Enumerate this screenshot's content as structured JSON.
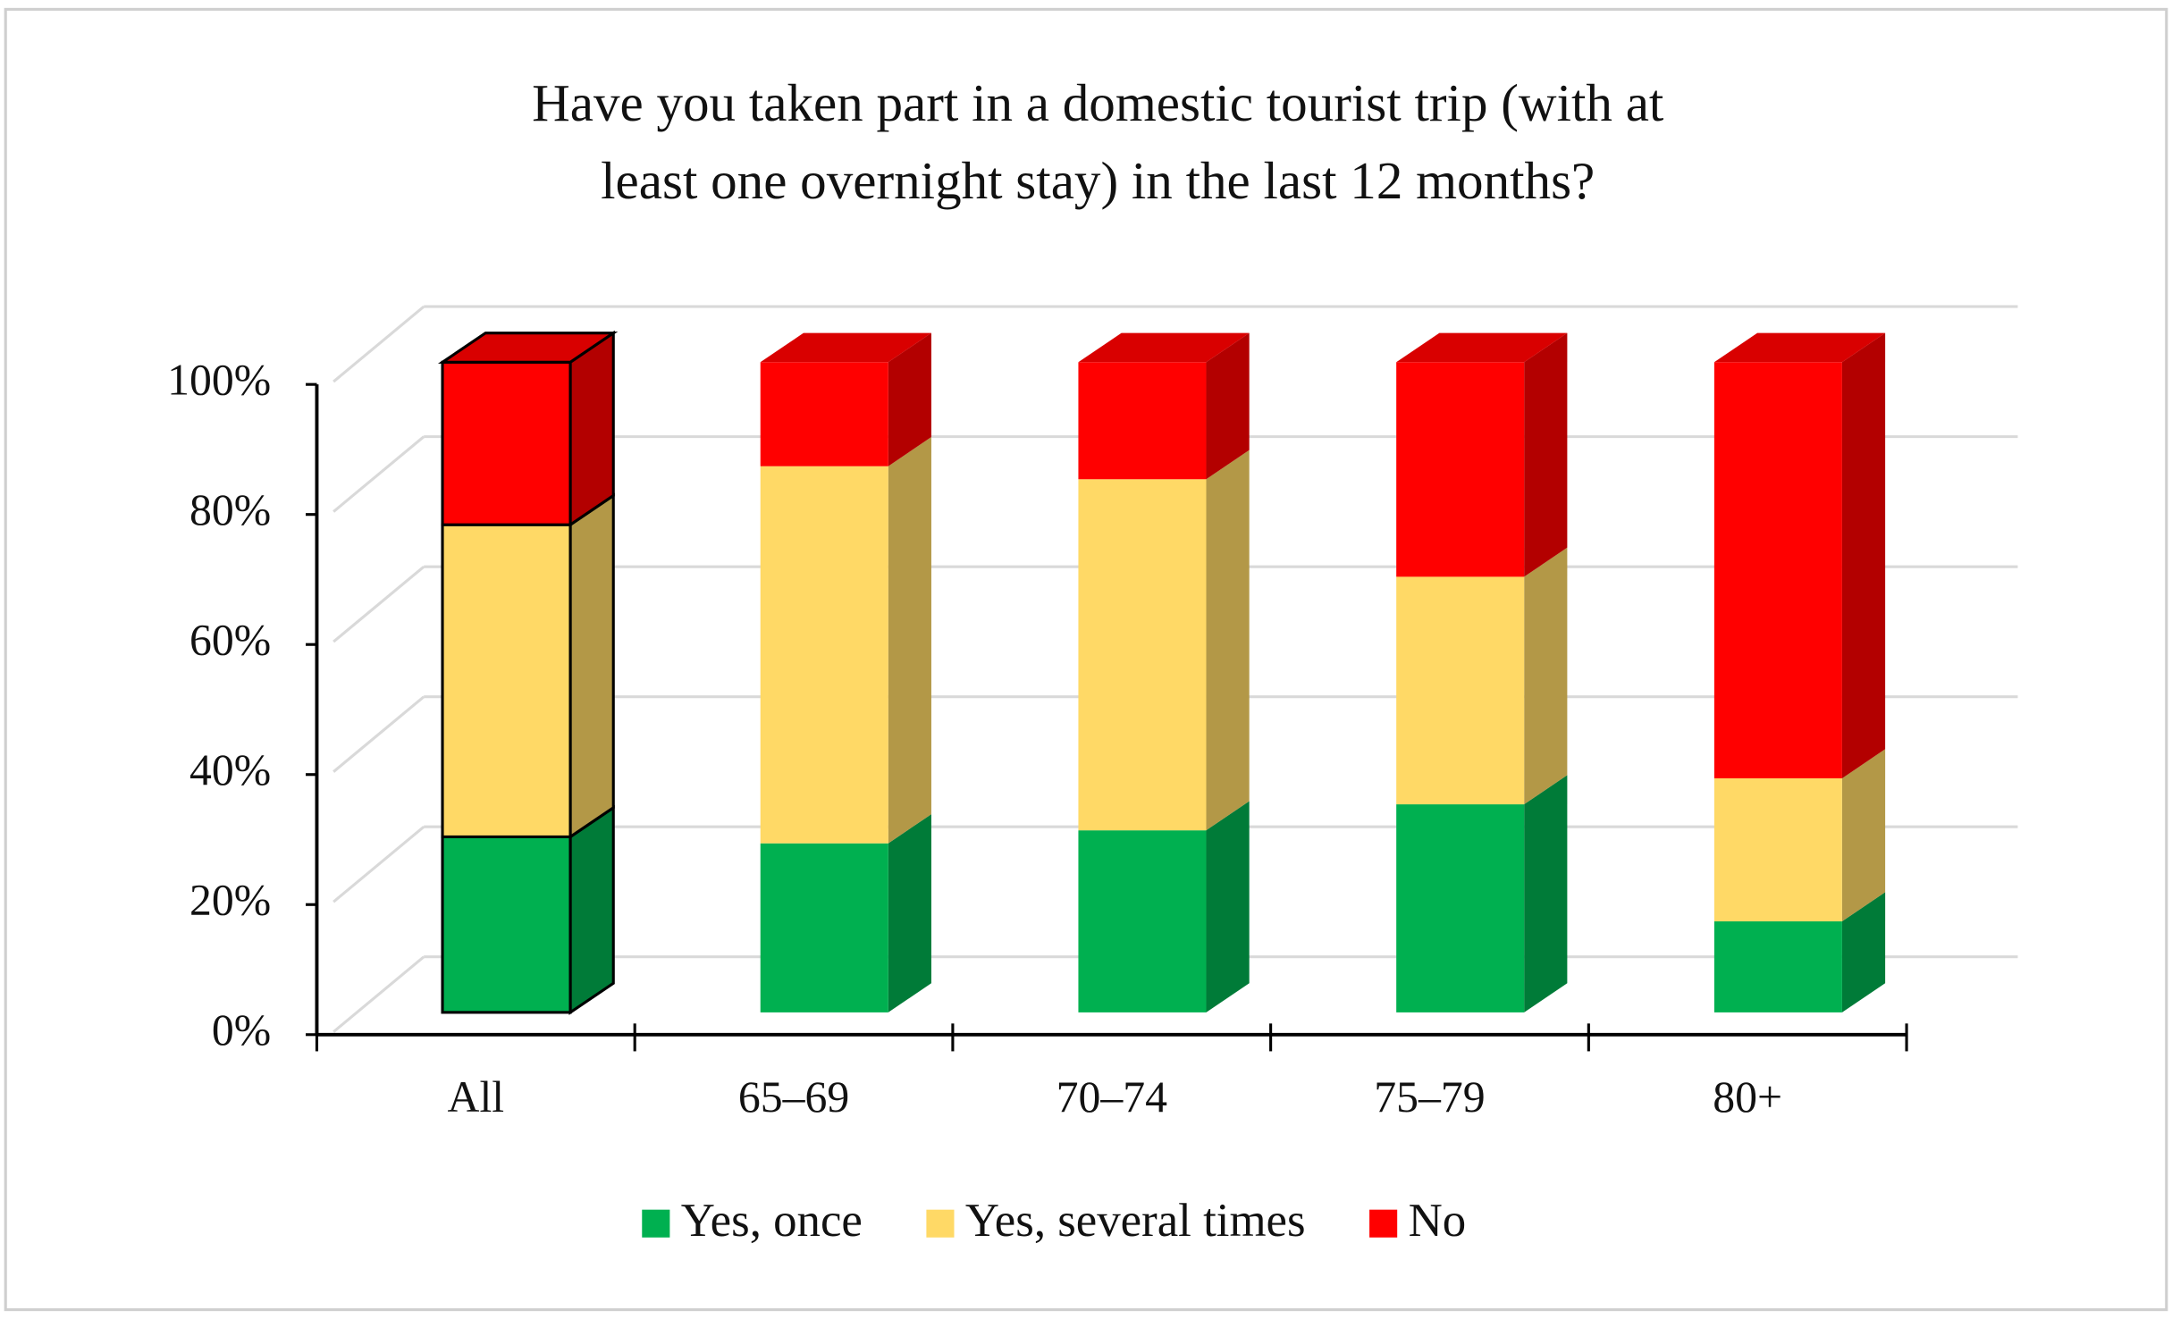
{
  "chart_data": {
    "type": "bar3d_stacked",
    "title": "Have you taken part in a domestic tourist trip (with at least one overnight stay) in the last 12 months?",
    "categories": [
      "All",
      "65–69",
      "70–74",
      "75–79",
      "80+"
    ],
    "series": [
      {
        "name": "Yes, once",
        "color": "#00b050",
        "values": [
          27,
          26,
          28,
          32,
          14
        ]
      },
      {
        "name": "Yes, several times",
        "color": "#ffd966",
        "values": [
          48,
          58,
          54,
          35,
          22
        ]
      },
      {
        "name": "No",
        "color": "#ff0000",
        "values": [
          25,
          16,
          18,
          33,
          64
        ]
      }
    ],
    "ylim": [
      0,
      100
    ],
    "yticks": [
      {
        "value": 0,
        "label": "0%"
      },
      {
        "value": 20,
        "label": "20%"
      },
      {
        "value": 40,
        "label": "40%"
      },
      {
        "value": 60,
        "label": "60%"
      },
      {
        "value": 80,
        "label": "80%"
      },
      {
        "value": 100,
        "label": "100%"
      }
    ],
    "grid": true,
    "legend": "bottom"
  }
}
